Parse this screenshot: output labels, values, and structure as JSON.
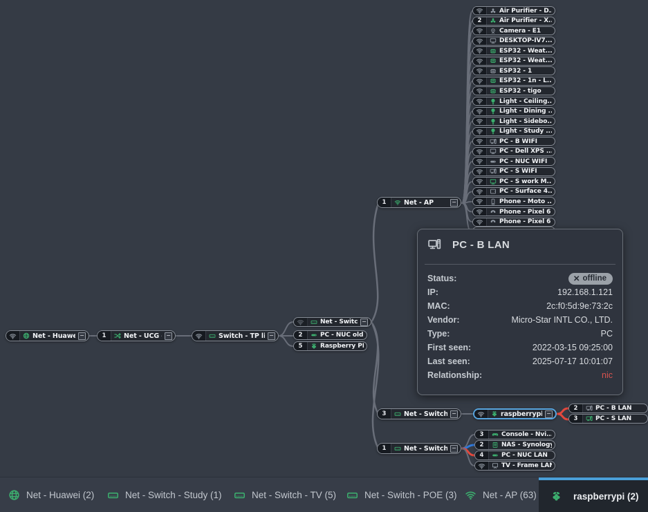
{
  "colors": {
    "canvas_bg": "#353b45",
    "green": "#3cae6e",
    "gray_icon": "#9098a2",
    "edge_gray": "#696e79",
    "edge_red": "#e2483d",
    "edge_blue": "#2f78d9",
    "selection_blue": "#58a6e0",
    "tab_accent": "#4a9fd8",
    "nic_red": "#d9534f",
    "offline_pill": "#9ba1a8"
  },
  "tree_nodes": [
    {
      "id": "net-huawei",
      "cap": "wifi",
      "icon": "globe",
      "on": true,
      "label": "Net - Huawei",
      "expander": true,
      "chain": true
    },
    {
      "id": "net-ucg",
      "cap": "1",
      "icon": "shuffle",
      "on": true,
      "label": "Net - UCG - Ul...",
      "expander": true,
      "chain": true
    },
    {
      "id": "switch-tp",
      "cap": "wifi",
      "icon": "switchbox",
      "on": true,
      "label": "Switch - TP li...",
      "expander": true,
      "chain": true
    },
    {
      "id": "net-switch-poe",
      "cap": "wifi",
      "dimcap": true,
      "icon": "switchbox",
      "on": true,
      "label": "Net - Switch - ...",
      "expander": true,
      "small": true
    },
    {
      "id": "pc-nuc-old",
      "cap": "2",
      "icon": "stick",
      "on": true,
      "label": "PC - NUC old",
      "small": true
    },
    {
      "id": "raspberry-pi-node",
      "cap": "5",
      "icon": "pi",
      "on": true,
      "label": "Raspberry PI ...",
      "small": true
    },
    {
      "id": "net-ap",
      "cap": "1",
      "icon": "wifi",
      "on": true,
      "label": "Net - AP",
      "expander": true,
      "chain": true
    },
    {
      "id": "net-switch-a",
      "cap": "3",
      "icon": "switchbox",
      "on": true,
      "label": "Net - Switch - ...",
      "expander": true,
      "chain": true
    },
    {
      "id": "raspberrypi",
      "cap": "wifi",
      "icon": "pi",
      "on": true,
      "label": "raspberrypi",
      "expander": true,
      "selected": true,
      "chain": true
    },
    {
      "id": "pc-b-lan",
      "cap": "2",
      "icon": "pc",
      "on": false,
      "label": "PC - B LAN",
      "small": true
    },
    {
      "id": "pc-s-lan",
      "cap": "3",
      "icon": "pc",
      "on": true,
      "label": "PC - S LAN",
      "small": true
    },
    {
      "id": "net-switch-b",
      "cap": "1",
      "icon": "switchbox",
      "on": true,
      "label": "Net - Switch - ...",
      "expander": true,
      "chain": true
    },
    {
      "id": "console-nvidia",
      "cap": "3",
      "icon": "pad",
      "on": true,
      "label": "Console - Nvi...",
      "small": true
    },
    {
      "id": "nas-synology",
      "cap": "2",
      "icon": "nas",
      "on": true,
      "label": "NAS - Synology",
      "small": true
    },
    {
      "id": "pc-nuc-lan",
      "cap": "4",
      "icon": "stick",
      "on": true,
      "label": "PC - NUC LAN",
      "small": true
    },
    {
      "id": "tv-frame-lan",
      "cap": "wifi",
      "icon": "tv",
      "on": false,
      "label": "TV - Frame LAN",
      "small": true
    }
  ],
  "device_list": {
    "items": [
      {
        "cap": "wifi",
        "icon": "fan",
        "on": false,
        "label": "Air Purifier - D..."
      },
      {
        "cap": "2",
        "icon": "fan",
        "on": true,
        "label": "Air Purifier - X..."
      },
      {
        "cap": "wifi",
        "icon": "camera",
        "on": false,
        "label": "Camera - E1"
      },
      {
        "cap": "wifi",
        "icon": "monitor",
        "on": false,
        "label": "DESKTOP-IV7..."
      },
      {
        "cap": "wifi",
        "icon": "chip",
        "on": true,
        "label": "ESP32 - Weat..."
      },
      {
        "cap": "wifi",
        "icon": "chip",
        "on": true,
        "label": "ESP32 - Weat..."
      },
      {
        "cap": "wifi",
        "icon": "chip",
        "on": false,
        "label": "ESP32 - 1"
      },
      {
        "cap": "wifi",
        "icon": "chip",
        "on": true,
        "label": "ESP32 - 1n - L..."
      },
      {
        "cap": "wifi",
        "icon": "chip",
        "on": true,
        "label": "ESP32 - tigo"
      },
      {
        "cap": "wifi",
        "icon": "bulb",
        "on": true,
        "label": "Light - Ceiling..."
      },
      {
        "cap": "wifi",
        "icon": "bulb",
        "on": true,
        "label": "Light - Dining ..."
      },
      {
        "cap": "wifi",
        "icon": "bulb",
        "on": true,
        "label": "Light - Sidebo..."
      },
      {
        "cap": "wifi",
        "icon": "bulb",
        "on": true,
        "label": "Light - Study ..."
      },
      {
        "cap": "wifi",
        "icon": "pc",
        "on": false,
        "label": "PC - B WIFI"
      },
      {
        "cap": "wifi",
        "icon": "monitor",
        "on": false,
        "label": "PC - Dell XPS ..."
      },
      {
        "cap": "wifi",
        "icon": "stick",
        "on": false,
        "label": "PC - NUC WIFI"
      },
      {
        "cap": "wifi",
        "icon": "pc",
        "on": false,
        "label": "PC - S WIFI"
      },
      {
        "cap": "wifi",
        "icon": "monitor",
        "on": true,
        "label": "PC - S work M..."
      },
      {
        "cap": "wifi",
        "icon": "tablet",
        "on": false,
        "label": "PC - Surface 4..."
      },
      {
        "cap": "wifi",
        "icon": "phone",
        "on": false,
        "label": "Phone - Moto ..."
      },
      {
        "cap": "wifi",
        "icon": "handset",
        "on": false,
        "label": "Phone - Pixel 6"
      },
      {
        "cap": "wifi",
        "icon": "handset",
        "on": false,
        "label": "Phone - Pixel 6"
      }
    ]
  },
  "panel": {
    "title": "PC - B LAN",
    "icon": "pc",
    "status_x": "✕",
    "rows": [
      {
        "label": "Status:",
        "value": "offline",
        "type": "status"
      },
      {
        "label": "IP:",
        "value": "192.168.1.121"
      },
      {
        "label": "MAC:",
        "value": "2c:f0:5d:9e:73:2c"
      },
      {
        "label": "Vendor:",
        "value": "Micro-Star INTL CO., LTD."
      },
      {
        "label": "Type:",
        "value": "PC"
      },
      {
        "label": "First seen:",
        "value": "2022-03-15 09:25:00"
      },
      {
        "label": "Last seen:",
        "value": "2025-07-17 10:01:07"
      },
      {
        "label": "Relationship:",
        "value": "nic",
        "type": "rel"
      }
    ]
  },
  "tabs": [
    {
      "icon": "globe",
      "label": "Net - Huawei (2)",
      "active": false
    },
    {
      "icon": "switchbox",
      "label": "Net - Switch - Study (1)",
      "active": false
    },
    {
      "icon": "switchbox",
      "label": "Net - Switch - TV (5)",
      "active": false
    },
    {
      "icon": "switchbox",
      "label": "Net - Switch - POE (3)",
      "active": false
    },
    {
      "icon": "wifi",
      "label": "Net - AP (63)",
      "active": false
    },
    {
      "icon": "pi",
      "label": "raspberrypi (2)",
      "active": true
    }
  ],
  "expander_glyph": "−"
}
